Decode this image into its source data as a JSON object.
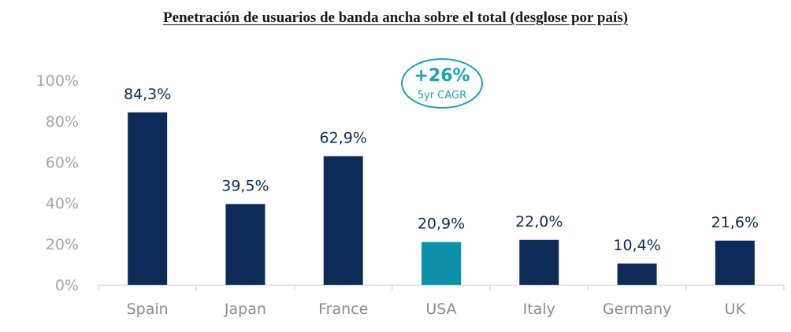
{
  "chart_data": {
    "type": "bar",
    "title": "Penetración de usuarios de banda ancha sobre el total (desglose por país)",
    "categories": [
      "Spain",
      "Japan",
      "France",
      "USA",
      "Italy",
      "Germany",
      "UK"
    ],
    "values": [
      84.3,
      39.5,
      62.9,
      20.9,
      22.0,
      10.4,
      21.6
    ],
    "data_labels": [
      "84,3%",
      "39,5%",
      "62,9%",
      "20,9%",
      "22,0%",
      "10,4%",
      "21,6%"
    ],
    "highlight_category": "USA",
    "ylim": [
      0,
      100
    ],
    "yticks": [
      0,
      20,
      40,
      60,
      80,
      100
    ],
    "ytick_labels": [
      "0%",
      "20%",
      "40%",
      "60%",
      "80%",
      "100%"
    ],
    "xlabel": "",
    "ylabel": "",
    "grid": false,
    "annotation": {
      "main": "+26%",
      "sub": "5yr CAGR"
    },
    "colors": {
      "bar": "#0d2b57",
      "highlight": "#0e90a9",
      "callout": "#1aa1b0",
      "axis": "#d9d9d9"
    }
  }
}
